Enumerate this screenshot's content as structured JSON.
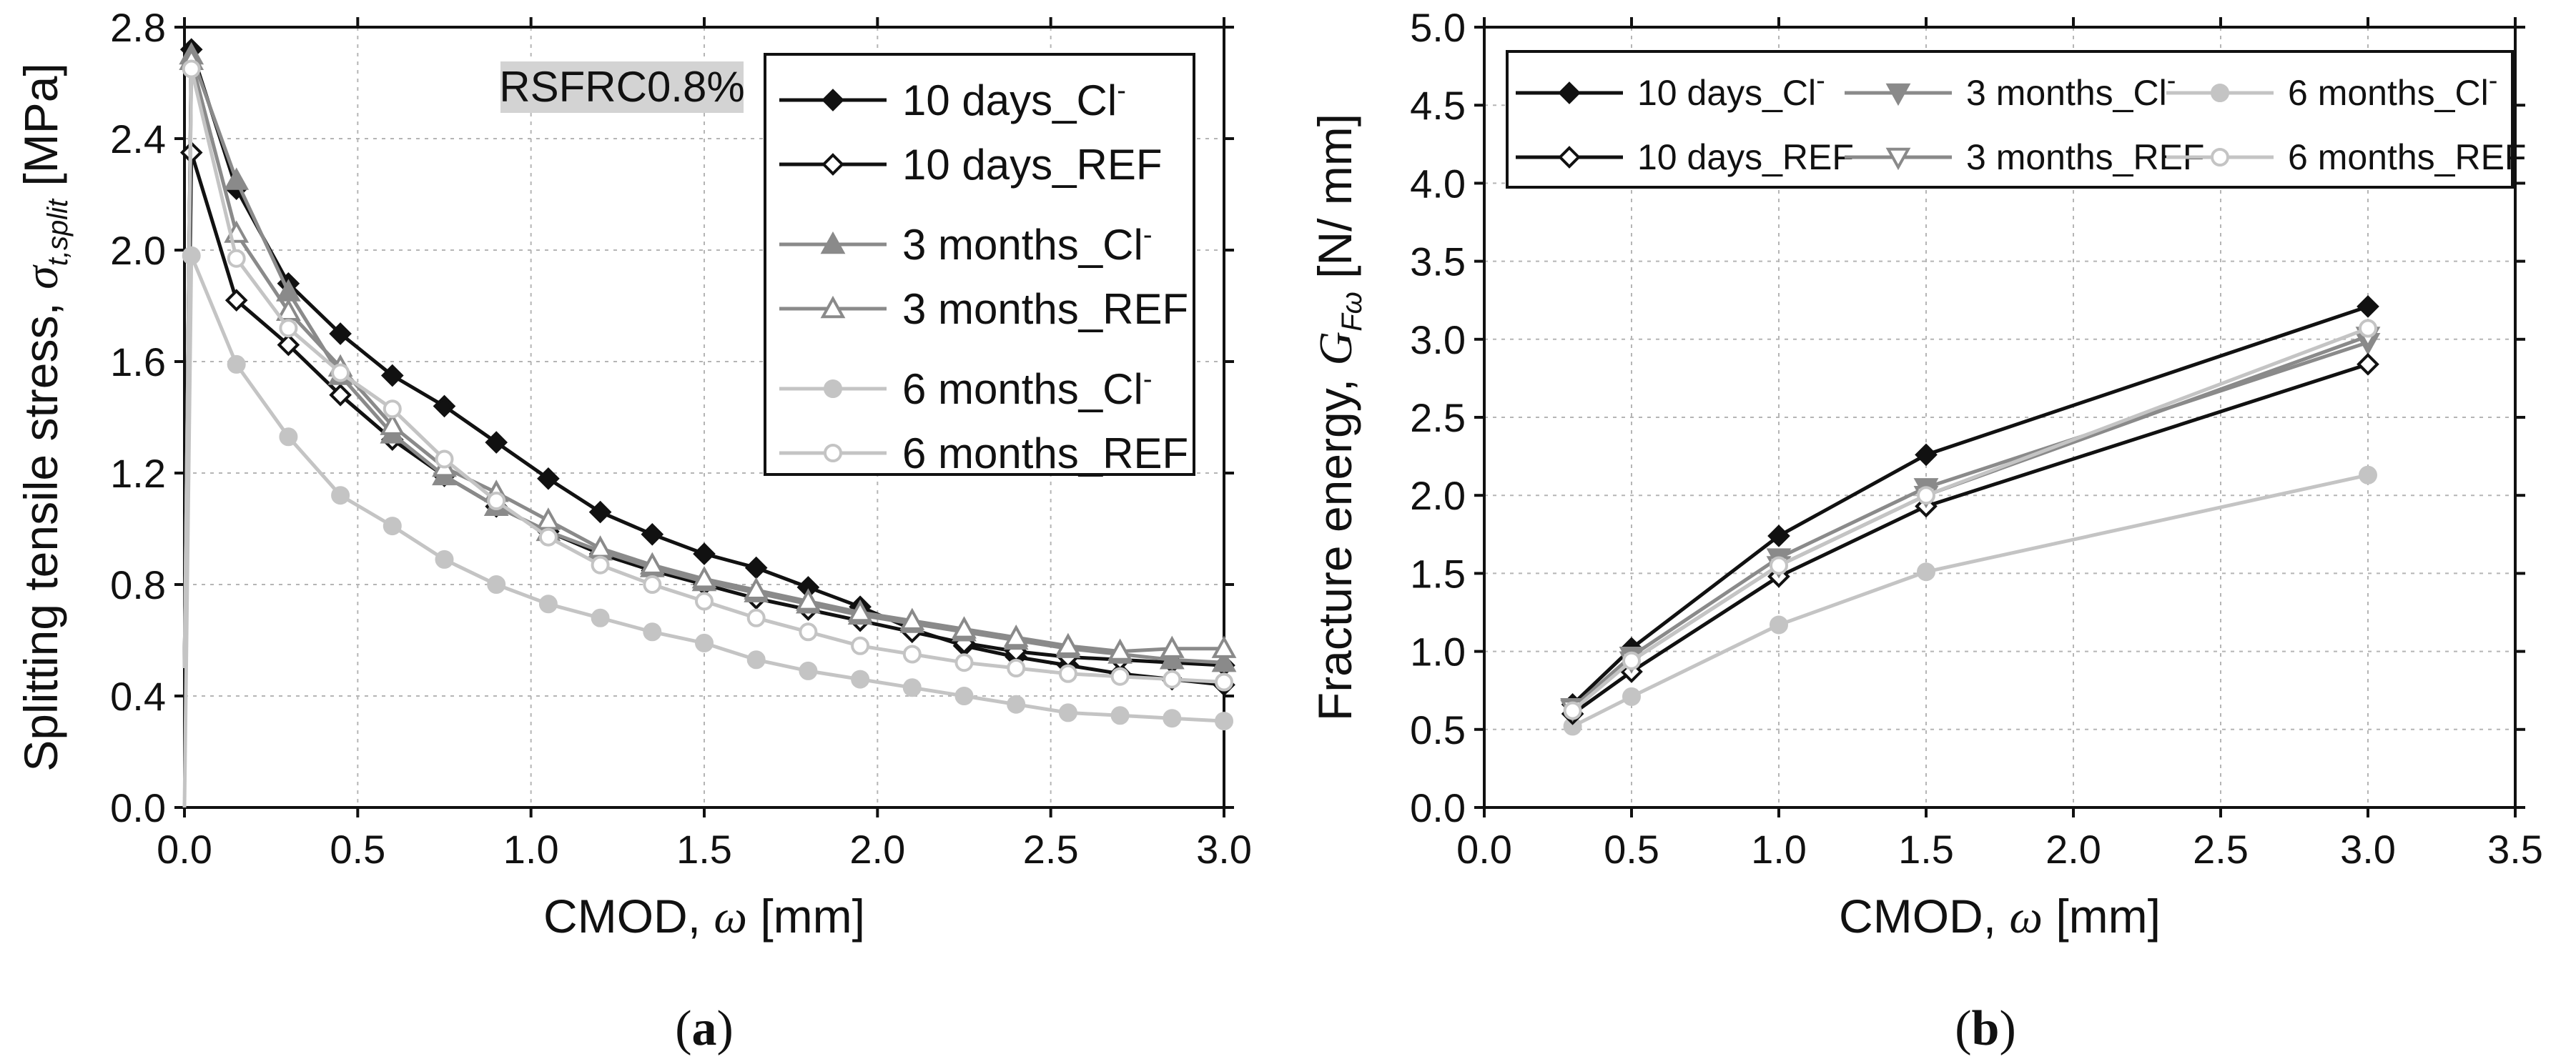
{
  "chart_data": [
    {
      "type": "line",
      "panel_label": "(a)",
      "title": "",
      "annotation": "RSFRC0.8%",
      "xlabel": "CMOD,",
      "xsymbol": "ω",
      "xunit": "[mm]",
      "ylabel": "Splitting tensile stress,",
      "ysymbol": "σ",
      "ysubscript": "t,split",
      "yunit": "[MPa]",
      "xlim": [
        0,
        3.0
      ],
      "ylim": [
        0,
        2.8
      ],
      "xticks": [
        "0.0",
        "0.5",
        "1.0",
        "1.5",
        "2.0",
        "2.5",
        "3.0"
      ],
      "yticks": [
        "0.0",
        "0.4",
        "0.8",
        "1.2",
        "1.6",
        "2.0",
        "2.4",
        "2.8"
      ],
      "grid": true,
      "legend_position": "top-right",
      "series": [
        {
          "name": "10 days_Cl",
          "superscript": "-",
          "color": "#111111",
          "marker": "diamond",
          "filled": true,
          "x": [
            0,
            0.02,
            0.15,
            0.3,
            0.45,
            0.6,
            0.75,
            0.9,
            1.05,
            1.2,
            1.35,
            1.5,
            1.65,
            1.8,
            1.95,
            2.1,
            2.25,
            2.4,
            2.55,
            2.7,
            2.85,
            3.0
          ],
          "y": [
            0.5,
            2.72,
            2.22,
            1.88,
            1.7,
            1.55,
            1.44,
            1.31,
            1.18,
            1.06,
            0.98,
            0.91,
            0.86,
            0.79,
            0.72,
            0.64,
            0.58,
            0.54,
            0.51,
            0.48,
            0.46,
            0.44
          ]
        },
        {
          "name": "10 days_REF",
          "superscript": "",
          "color": "#111111",
          "marker": "diamond",
          "filled": false,
          "x": [
            0,
            0.02,
            0.15,
            0.3,
            0.45,
            0.6,
            0.75,
            0.9,
            1.05,
            1.2,
            1.35,
            1.5,
            1.65,
            1.8,
            1.95,
            2.1,
            2.25,
            2.4,
            2.55,
            2.7,
            2.85,
            3.0
          ],
          "y": [
            0.5,
            2.35,
            1.82,
            1.66,
            1.48,
            1.32,
            1.19,
            1.08,
            0.99,
            0.91,
            0.85,
            0.8,
            0.75,
            0.71,
            0.67,
            0.63,
            0.59,
            0.56,
            0.54,
            0.53,
            0.52,
            0.51
          ]
        },
        {
          "name": "3 months_Cl",
          "superscript": "-",
          "color": "#8a8a8a",
          "marker": "triangle",
          "filled": true,
          "x": [
            0,
            0.02,
            0.15,
            0.3,
            0.45,
            0.6,
            0.75,
            0.9,
            1.05,
            1.2,
            1.35,
            1.5,
            1.65,
            1.8,
            1.95,
            2.1,
            2.25,
            2.4,
            2.55,
            2.7,
            2.85,
            3.0
          ],
          "y": [
            0.5,
            2.7,
            2.25,
            1.85,
            1.55,
            1.34,
            1.19,
            1.08,
            0.99,
            0.92,
            0.86,
            0.81,
            0.77,
            0.73,
            0.69,
            0.66,
            0.63,
            0.6,
            0.57,
            0.55,
            0.53,
            0.52
          ]
        },
        {
          "name": "3 months_REF",
          "superscript": "",
          "color": "#8a8a8a",
          "marker": "triangle",
          "filled": false,
          "x": [
            0,
            0.02,
            0.15,
            0.3,
            0.45,
            0.6,
            0.75,
            0.9,
            1.05,
            1.2,
            1.35,
            1.5,
            1.65,
            1.8,
            1.95,
            2.1,
            2.25,
            2.4,
            2.55,
            2.7,
            2.85,
            3.0
          ],
          "y": [
            0.5,
            2.68,
            2.06,
            1.78,
            1.58,
            1.37,
            1.22,
            1.13,
            1.03,
            0.93,
            0.87,
            0.82,
            0.78,
            0.74,
            0.7,
            0.67,
            0.64,
            0.61,
            0.58,
            0.56,
            0.57,
            0.57
          ]
        },
        {
          "name": "6 months_Cl",
          "superscript": "-",
          "color": "#c4c4c4",
          "marker": "circle",
          "filled": true,
          "x": [
            0,
            0.02,
            0.15,
            0.3,
            0.45,
            0.6,
            0.75,
            0.9,
            1.05,
            1.2,
            1.35,
            1.5,
            1.65,
            1.8,
            1.95,
            2.1,
            2.25,
            2.4,
            2.55,
            2.7,
            2.85,
            3.0
          ],
          "y": [
            0,
            1.98,
            1.59,
            1.33,
            1.12,
            1.01,
            0.89,
            0.8,
            0.73,
            0.68,
            0.63,
            0.59,
            0.53,
            0.49,
            0.46,
            0.43,
            0.4,
            0.37,
            0.34,
            0.33,
            0.32,
            0.31
          ]
        },
        {
          "name": "6 months_REF",
          "superscript": "",
          "color": "#c4c4c4",
          "marker": "circle",
          "filled": false,
          "x": [
            0,
            0.02,
            0.15,
            0.3,
            0.45,
            0.6,
            0.75,
            0.9,
            1.05,
            1.2,
            1.35,
            1.5,
            1.65,
            1.8,
            1.95,
            2.1,
            2.25,
            2.4,
            2.55,
            2.7,
            2.85,
            3.0
          ],
          "y": [
            0.5,
            2.65,
            1.97,
            1.72,
            1.56,
            1.43,
            1.25,
            1.1,
            0.97,
            0.87,
            0.8,
            0.74,
            0.68,
            0.63,
            0.58,
            0.55,
            0.52,
            0.5,
            0.48,
            0.47,
            0.46,
            0.45
          ]
        }
      ]
    },
    {
      "type": "line",
      "panel_label": "(b)",
      "title": "",
      "xlabel": "CMOD,",
      "xsymbol": "ω",
      "xunit": "[mm]",
      "ylabel": "Fracture energy,",
      "ysymbol": "G",
      "ysubscript": "Fω",
      "yunit": "[N/ mm]",
      "xlim": [
        0,
        3.5
      ],
      "ylim": [
        0,
        5.0
      ],
      "xticks": [
        "0.0",
        "0.5",
        "1.0",
        "1.5",
        "2.0",
        "2.5",
        "3.0",
        "3.5"
      ],
      "yticks": [
        "0.0",
        "0.5",
        "1.0",
        "1.5",
        "2.0",
        "2.5",
        "3.0",
        "3.5",
        "4.0",
        "4.5",
        "5.0"
      ],
      "grid": true,
      "legend_position": "top-left",
      "series": [
        {
          "name": "10 days_Cl",
          "superscript": "-",
          "color": "#111111",
          "marker": "diamond",
          "filled": true,
          "x": [
            0.3,
            0.5,
            1.0,
            1.5,
            3.0
          ],
          "y": [
            0.66,
            1.02,
            1.74,
            2.26,
            3.21
          ]
        },
        {
          "name": "3 months_Cl",
          "superscript": "-",
          "color": "#8a8a8a",
          "marker": "triangle-down",
          "filled": true,
          "x": [
            0.3,
            0.5,
            1.0,
            1.5,
            3.0
          ],
          "y": [
            0.64,
            0.97,
            1.6,
            2.05,
            2.98
          ]
        },
        {
          "name": "6 months_Cl",
          "superscript": "-",
          "color": "#c4c4c4",
          "marker": "circle",
          "filled": true,
          "x": [
            0.3,
            0.5,
            1.0,
            1.5,
            3.0
          ],
          "y": [
            0.52,
            0.71,
            1.17,
            1.51,
            2.13
          ]
        },
        {
          "name": "10 days_REF",
          "superscript": "",
          "color": "#111111",
          "marker": "diamond",
          "filled": false,
          "x": [
            0.3,
            0.5,
            1.0,
            1.5,
            3.0
          ],
          "y": [
            0.6,
            0.87,
            1.48,
            1.93,
            2.84
          ]
        },
        {
          "name": "3 months_REF",
          "superscript": "",
          "color": "#8a8a8a",
          "marker": "triangle-down",
          "filled": false,
          "x": [
            0.3,
            0.5,
            1.0,
            1.5,
            3.0
          ],
          "y": [
            0.63,
            0.94,
            1.55,
            2.0,
            3.02
          ]
        },
        {
          "name": "6 months_REF",
          "superscript": "",
          "color": "#c4c4c4",
          "marker": "circle",
          "filled": false,
          "x": [
            0.3,
            0.5,
            1.0,
            1.5,
            3.0
          ],
          "y": [
            0.62,
            0.94,
            1.55,
            2.0,
            3.07
          ]
        }
      ]
    }
  ]
}
